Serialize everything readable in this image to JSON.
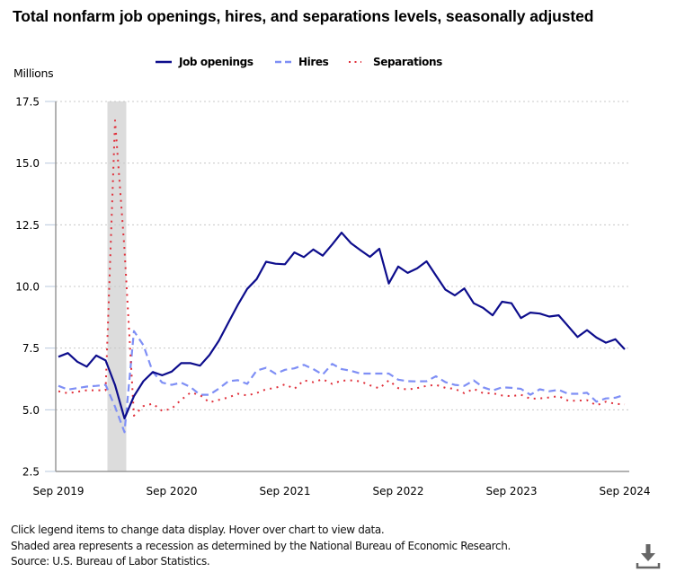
{
  "header": {
    "title": "Total nonfarm job openings, hires, and separations levels, seasonally adjusted"
  },
  "legend": {
    "items": [
      {
        "label": "Job openings",
        "color": "#0d0d8c",
        "style": "solid"
      },
      {
        "label": "Hires",
        "color": "#7f8ff5",
        "style": "dashed"
      },
      {
        "label": "Separations",
        "color": "#e02f3a",
        "style": "dotted"
      }
    ]
  },
  "axis": {
    "units_label": "Millions"
  },
  "footnotes": {
    "line1": "Click legend items to change data display. Hover over chart to view data.",
    "line2": "Shaded area represents a recession as determined by the National Bureau of Economic Research.",
    "line3": "Source: U.S. Bureau of Labor Statistics."
  },
  "toolbar": {
    "download_icon": "download-icon"
  },
  "chart_data": {
    "type": "line",
    "title": "Total nonfarm job openings, hires, and separations levels, seasonally adjusted",
    "xlabel": "",
    "ylabel": "Millions",
    "ylim": [
      2.5,
      17.5
    ],
    "yticks": [
      "2.5",
      "5.0",
      "7.5",
      "10.0",
      "12.5",
      "15.0",
      "17.5"
    ],
    "ytick_values": [
      2.5,
      5.0,
      7.5,
      10.0,
      12.5,
      15.0,
      17.5
    ],
    "x_start": "Sep 2019",
    "x_end": "Sep 2024",
    "x_months": 61,
    "xticks": [
      {
        "label": "Sep 2019",
        "index": 0
      },
      {
        "label": "Sep 2020",
        "index": 12
      },
      {
        "label": "Sep 2021",
        "index": 24
      },
      {
        "label": "Sep 2022",
        "index": 36
      },
      {
        "label": "Sep 2023",
        "index": 48
      },
      {
        "label": "Sep 2024",
        "index": 60
      }
    ],
    "grid": "horizontal dotted",
    "legend_position": "top-center",
    "recession": {
      "label": "Recession",
      "start": "Feb 2020",
      "end": "Apr 2020",
      "start_index": 5,
      "end_index": 7,
      "color": "#dcdcdc"
    },
    "series": [
      {
        "name": "Job openings",
        "color": "#0d0d8c",
        "style": "solid",
        "values": [
          7.15,
          7.3,
          6.95,
          6.75,
          7.2,
          7.0,
          6.0,
          4.65,
          5.55,
          6.16,
          6.53,
          6.4,
          6.55,
          6.89,
          6.89,
          6.79,
          7.22,
          7.8,
          8.53,
          9.25,
          9.9,
          10.3,
          11.0,
          10.92,
          10.9,
          11.38,
          11.19,
          11.5,
          11.25,
          11.7,
          12.18,
          11.75,
          11.47,
          11.2,
          11.53,
          10.12,
          10.81,
          10.55,
          10.73,
          11.02,
          10.44,
          9.87,
          9.64,
          9.92,
          9.32,
          9.13,
          8.83,
          9.38,
          9.32,
          8.72,
          8.94,
          8.9,
          8.78,
          8.83,
          8.39,
          7.95,
          8.23,
          7.93,
          7.72,
          7.86,
          7.45
        ]
      },
      {
        "name": "Hires",
        "color": "#7f8ff5",
        "style": "dashed",
        "values": [
          5.97,
          5.82,
          5.88,
          5.94,
          5.97,
          6.01,
          5.12,
          4.09,
          8.19,
          7.62,
          6.53,
          6.1,
          6.01,
          6.1,
          5.92,
          5.61,
          5.61,
          5.86,
          6.16,
          6.2,
          6.05,
          6.59,
          6.7,
          6.46,
          6.62,
          6.68,
          6.82,
          6.65,
          6.43,
          6.86,
          6.65,
          6.58,
          6.47,
          6.47,
          6.47,
          6.47,
          6.22,
          6.16,
          6.15,
          6.16,
          6.36,
          6.12,
          6.01,
          5.97,
          6.19,
          5.91,
          5.78,
          5.91,
          5.89,
          5.85,
          5.61,
          5.83,
          5.75,
          5.81,
          5.65,
          5.65,
          5.69,
          5.33,
          5.46,
          5.49,
          5.61
        ]
      },
      {
        "name": "Separations",
        "color": "#e02f3a",
        "style": "dotted",
        "values": [
          5.75,
          5.67,
          5.73,
          5.79,
          5.79,
          5.79,
          16.73,
          11.5,
          4.76,
          5.15,
          5.25,
          4.95,
          5.05,
          5.4,
          5.7,
          5.6,
          5.3,
          5.4,
          5.5,
          5.65,
          5.58,
          5.68,
          5.83,
          5.89,
          6.03,
          5.85,
          6.19,
          6.12,
          6.24,
          6.05,
          6.18,
          6.19,
          6.15,
          5.99,
          5.87,
          6.19,
          5.88,
          5.82,
          5.88,
          5.97,
          6.01,
          5.89,
          5.85,
          5.67,
          5.85,
          5.67,
          5.67,
          5.58,
          5.55,
          5.61,
          5.45,
          5.46,
          5.5,
          5.55,
          5.37,
          5.37,
          5.39,
          5.18,
          5.33,
          5.24,
          5.22
        ]
      }
    ]
  }
}
